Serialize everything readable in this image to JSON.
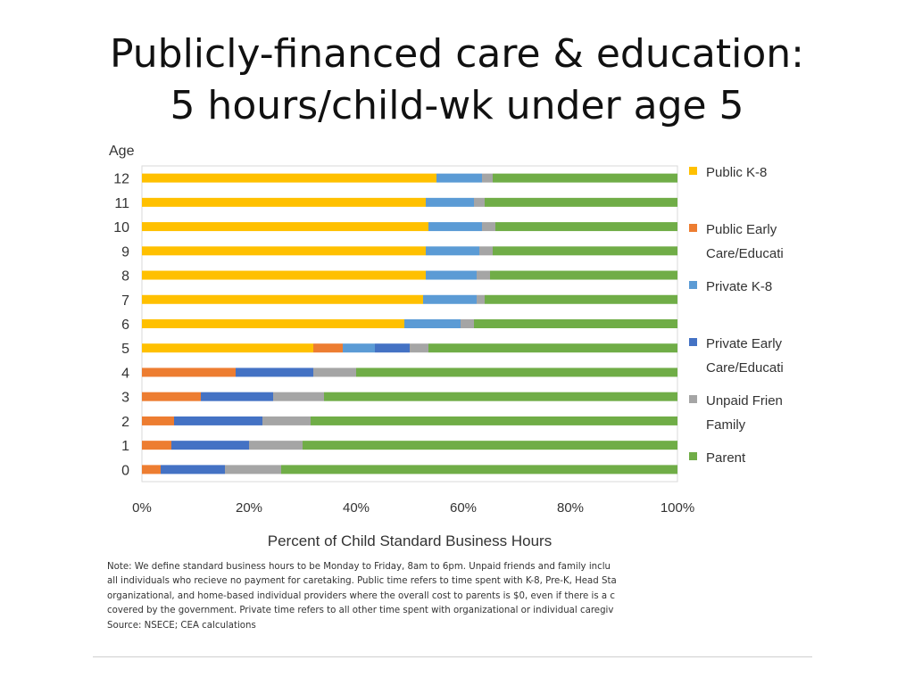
{
  "slide": {
    "title_line1": "Publicly-financed care & education:",
    "title_line2": "5 hours/child-wk under age 5"
  },
  "chart_data": {
    "type": "bar",
    "orientation": "horizontal",
    "stacked": "percent",
    "ylabel": "Age",
    "xlabel": "Percent of Child Standard Business Hours",
    "categories": [
      "12",
      "11",
      "10",
      "9",
      "8",
      "7",
      "6",
      "5",
      "4",
      "3",
      "2",
      "1",
      "0"
    ],
    "xlim": [
      0,
      100
    ],
    "x_ticks": [
      "0%",
      "20%",
      "40%",
      "60%",
      "80%",
      "100%"
    ],
    "grid": false,
    "legend_position": "right",
    "series": [
      {
        "name": "Public K-8",
        "color": "#FFC000",
        "values": [
          55,
          53,
          53.5,
          53,
          53,
          52.5,
          49,
          32,
          0,
          0,
          0,
          0,
          0
        ]
      },
      {
        "name": "Public Early Care/Educati",
        "color": "#ED7D31",
        "values": [
          0,
          0,
          0,
          0,
          0,
          0,
          0,
          5.5,
          17.5,
          11,
          6,
          5.5,
          3.5
        ]
      },
      {
        "name": "Private K-8",
        "color": "#5B9BD5",
        "values": [
          8.5,
          9,
          10,
          10,
          9.5,
          10,
          10.5,
          6,
          0,
          0,
          0,
          0,
          0
        ]
      },
      {
        "name": "Private Early Care/Educati",
        "color": "#4472C4",
        "values": [
          0,
          0,
          0,
          0,
          0,
          0,
          0,
          6.5,
          14.5,
          13.5,
          16.5,
          14.5,
          12
        ]
      },
      {
        "name": "Unpaid Frien Family",
        "color": "#A5A5A5",
        "values": [
          2,
          2,
          2.5,
          2.5,
          2.5,
          1.5,
          2.5,
          3.5,
          8,
          9.5,
          9,
          10,
          10.5
        ]
      },
      {
        "name": "Parent",
        "color": "#70AD47",
        "values": [
          34.5,
          36,
          34,
          34.5,
          35,
          36,
          38,
          46.5,
          60,
          66,
          68.5,
          70,
          74
        ]
      }
    ]
  },
  "legend": {
    "items": [
      {
        "lines": [
          "Public K-8"
        ],
        "color": "#FFC000"
      },
      {
        "lines": [
          "Public Early",
          "Care/Educati"
        ],
        "color": "#ED7D31"
      },
      {
        "lines": [
          "Private K-8"
        ],
        "color": "#5B9BD5"
      },
      {
        "lines": [
          "Private Early",
          "Care/Educati"
        ],
        "color": "#4472C4"
      },
      {
        "lines": [
          "Unpaid Frien",
          "Family"
        ],
        "color": "#A5A5A5"
      },
      {
        "lines": [
          "Parent"
        ],
        "color": "#70AD47"
      }
    ]
  },
  "note": {
    "line1": "Note: We define standard business hours to be Monday to Friday, 8am to 6pm. Unpaid friends and family inclu",
    "line2": "all individuals who recieve no payment for caretaking. Public time refers to time spent with K-8, Pre-K, Head Sta",
    "line3": "organizational, and home-based individual providers where the overall cost to parents is $0, even if there is a  c",
    "line4": "covered by the government. Private time refers to all other time spent with organizational or individual caregiv",
    "line5": "Source: NSECE; CEA calculations"
  }
}
